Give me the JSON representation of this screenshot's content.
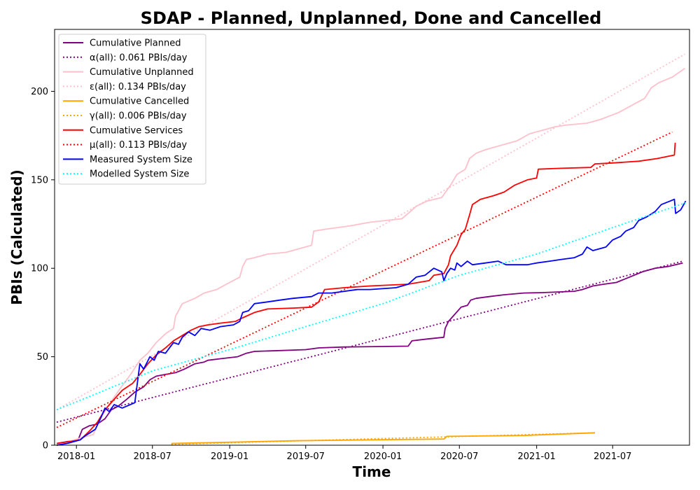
{
  "chart_data": {
    "type": "line",
    "title": "SDAP - Planned, Unplanned, Done  and Cancelled",
    "xlabel": "Time",
    "ylabel": "PBIs (Calculated)",
    "xlim": [
      "2017-11-10",
      "2021-12-31"
    ],
    "ylim": [
      0,
      235
    ],
    "x_ticks": [
      "2018-01",
      "2018-07",
      "2019-01",
      "2019-07",
      "2020-01",
      "2020-07",
      "2021-01",
      "2021-07"
    ],
    "y_ticks": [
      0,
      50,
      100,
      150,
      200
    ],
    "grid": false,
    "legend": "upper left",
    "series": [
      {
        "name": "Cumulative Planned",
        "style": "solid",
        "color": "#800080",
        "points": [
          [
            "2017-11-15",
            1
          ],
          [
            "2017-12-10",
            2
          ],
          [
            "2018-01-05",
            3
          ],
          [
            "2018-01-15",
            9
          ],
          [
            "2018-02-01",
            11
          ],
          [
            "2018-02-20",
            12
          ],
          [
            "2018-03-10",
            15
          ],
          [
            "2018-03-25",
            20
          ],
          [
            "2018-04-10",
            22
          ],
          [
            "2018-05-01",
            26
          ],
          [
            "2018-05-20",
            30
          ],
          [
            "2018-06-10",
            33
          ],
          [
            "2018-06-25",
            37
          ],
          [
            "2018-07-10",
            39
          ],
          [
            "2018-08-01",
            40
          ],
          [
            "2018-08-25",
            41
          ],
          [
            "2018-09-15",
            43
          ],
          [
            "2018-10-10",
            46
          ],
          [
            "2018-11-01",
            47
          ],
          [
            "2018-11-10",
            48
          ],
          [
            "2018-12-15",
            49
          ],
          [
            "2019-01-20",
            50
          ],
          [
            "2019-02-10",
            52
          ],
          [
            "2019-03-01",
            53
          ],
          [
            "2019-05-01",
            53.5
          ],
          [
            "2019-07-01",
            54
          ],
          [
            "2019-08-01",
            55
          ],
          [
            "2019-10-01",
            55.5
          ],
          [
            "2020-01-01",
            55.8
          ],
          [
            "2020-03-01",
            56
          ],
          [
            "2020-03-10",
            59
          ],
          [
            "2020-04-15",
            60
          ],
          [
            "2020-05-25",
            61
          ],
          [
            "2020-05-28",
            66
          ],
          [
            "2020-06-05",
            70
          ],
          [
            "2020-06-20",
            74
          ],
          [
            "2020-07-05",
            78
          ],
          [
            "2020-07-20",
            79
          ],
          [
            "2020-07-28",
            82
          ],
          [
            "2020-08-10",
            83
          ],
          [
            "2020-09-10",
            84
          ],
          [
            "2020-10-15",
            85
          ],
          [
            "2020-12-01",
            86
          ],
          [
            "2021-01-10",
            86.2
          ],
          [
            "2021-02-10",
            86.5
          ],
          [
            "2021-04-01",
            87
          ],
          [
            "2021-04-20",
            88
          ],
          [
            "2021-05-15",
            90
          ],
          [
            "2021-06-10",
            91
          ],
          [
            "2021-07-10",
            92
          ],
          [
            "2021-08-10",
            95
          ],
          [
            "2021-09-10",
            98
          ],
          [
            "2021-10-10",
            100
          ],
          [
            "2021-11-10",
            101
          ],
          [
            "2021-12-15",
            103
          ]
        ]
      },
      {
        "name": "α(all): 0.061 PBIs/day",
        "style": "dotted",
        "color": "#800080",
        "points": [
          [
            "2017-11-15",
            13
          ],
          [
            "2021-12-15",
            104
          ]
        ]
      },
      {
        "name": "Cumulative Unplanned",
        "style": "solid",
        "color": "#FFC0CB",
        "points": [
          [
            "2017-11-15",
            0
          ],
          [
            "2018-01-10",
            4
          ],
          [
            "2018-02-10",
            6
          ],
          [
            "2018-03-01",
            16
          ],
          [
            "2018-03-20",
            23
          ],
          [
            "2018-04-15",
            32
          ],
          [
            "2018-05-10",
            40
          ],
          [
            "2018-06-01",
            48
          ],
          [
            "2018-06-20",
            52
          ],
          [
            "2018-07-10",
            58
          ],
          [
            "2018-08-01",
            63
          ],
          [
            "2018-08-20",
            66
          ],
          [
            "2018-08-25",
            73
          ],
          [
            "2018-09-01",
            76
          ],
          [
            "2018-09-10",
            80
          ],
          [
            "2018-10-10",
            83
          ],
          [
            "2018-11-01",
            86
          ],
          [
            "2018-12-01",
            88
          ],
          [
            "2019-01-01",
            92
          ],
          [
            "2019-01-25",
            95
          ],
          [
            "2019-02-01",
            101
          ],
          [
            "2019-02-10",
            105
          ],
          [
            "2019-03-01",
            106
          ],
          [
            "2019-04-01",
            108
          ],
          [
            "2019-05-15",
            109
          ],
          [
            "2019-06-15",
            111
          ],
          [
            "2019-07-15",
            113
          ],
          [
            "2019-07-20",
            121
          ],
          [
            "2019-08-15",
            122
          ],
          [
            "2019-10-15",
            124
          ],
          [
            "2019-12-01",
            126
          ],
          [
            "2020-02-15",
            128
          ],
          [
            "2020-03-01",
            131
          ],
          [
            "2020-03-20",
            135
          ],
          [
            "2020-04-15",
            138
          ],
          [
            "2020-05-20",
            140
          ],
          [
            "2020-06-10",
            147
          ],
          [
            "2020-06-25",
            153
          ],
          [
            "2020-07-15",
            156
          ],
          [
            "2020-07-25",
            162
          ],
          [
            "2020-08-10",
            165
          ],
          [
            "2020-09-01",
            167
          ],
          [
            "2020-10-01",
            169
          ],
          [
            "2020-11-15",
            172
          ],
          [
            "2020-12-15",
            176
          ],
          [
            "2021-01-15",
            178
          ],
          [
            "2021-02-15",
            180
          ],
          [
            "2021-03-15",
            181
          ],
          [
            "2021-05-01",
            182
          ],
          [
            "2021-06-01",
            184
          ],
          [
            "2021-07-15",
            188
          ],
          [
            "2021-08-15",
            192
          ],
          [
            "2021-09-15",
            196
          ],
          [
            "2021-10-01",
            202
          ],
          [
            "2021-10-20",
            205
          ],
          [
            "2021-11-20",
            208
          ],
          [
            "2021-12-20",
            213
          ]
        ]
      },
      {
        "name": "ε(all): 0.134 PBIs/day",
        "style": "dotted",
        "color": "#FFC0CB",
        "points": [
          [
            "2017-11-15",
            20
          ],
          [
            "2021-12-20",
            221
          ]
        ]
      },
      {
        "name": "Cumulative Cancelled",
        "style": "solid",
        "color": "#FFA500",
        "points": [
          [
            "2018-08-15",
            1
          ],
          [
            "2018-12-01",
            1.5
          ],
          [
            "2019-06-01",
            2.5
          ],
          [
            "2019-12-01",
            3
          ],
          [
            "2020-05-25",
            3.5
          ],
          [
            "2020-06-01",
            5
          ],
          [
            "2020-12-01",
            5.5
          ],
          [
            "2021-05-20",
            7
          ]
        ]
      },
      {
        "name": "γ(all): 0.006 PBIs/day",
        "style": "dotted",
        "color": "#FFA500",
        "points": [
          [
            "2018-08-15",
            0.5
          ],
          [
            "2021-05-20",
            7
          ]
        ]
      },
      {
        "name": "Cumulative Services",
        "style": "solid",
        "color": "#FF0000",
        "points": [
          [
            "2017-11-15",
            1
          ],
          [
            "2017-12-15",
            2
          ],
          [
            "2018-01-10",
            3
          ],
          [
            "2018-02-01",
            8
          ],
          [
            "2018-02-20",
            13
          ],
          [
            "2018-03-10",
            20
          ],
          [
            "2018-04-01",
            26
          ],
          [
            "2018-04-20",
            31
          ],
          [
            "2018-05-15",
            35
          ],
          [
            "2018-06-01",
            40
          ],
          [
            "2018-06-20",
            46
          ],
          [
            "2018-07-10",
            51
          ],
          [
            "2018-08-01",
            55
          ],
          [
            "2018-08-20",
            59
          ],
          [
            "2018-09-10",
            62
          ],
          [
            "2018-10-01",
            65
          ],
          [
            "2018-10-20",
            67
          ],
          [
            "2018-11-10",
            68
          ],
          [
            "2018-12-10",
            69
          ],
          [
            "2019-01-15",
            70
          ],
          [
            "2019-02-01",
            72
          ],
          [
            "2019-03-01",
            75
          ],
          [
            "2019-04-01",
            77
          ],
          [
            "2019-06-01",
            77.5
          ],
          [
            "2019-07-15",
            78
          ],
          [
            "2019-08-01",
            81
          ],
          [
            "2019-08-15",
            88
          ],
          [
            "2019-10-01",
            89
          ],
          [
            "2019-12-01",
            90
          ],
          [
            "2020-03-01",
            91
          ],
          [
            "2020-04-20",
            93
          ],
          [
            "2020-05-01",
            96
          ],
          [
            "2020-05-25",
            97
          ],
          [
            "2020-06-05",
            102
          ],
          [
            "2020-06-10",
            107
          ],
          [
            "2020-06-25",
            113
          ],
          [
            "2020-07-05",
            119
          ],
          [
            "2020-07-15",
            122
          ],
          [
            "2020-07-25",
            130
          ],
          [
            "2020-08-01",
            136
          ],
          [
            "2020-08-20",
            139
          ],
          [
            "2020-09-20",
            141
          ],
          [
            "2020-10-15",
            143
          ],
          [
            "2020-11-10",
            147
          ],
          [
            "2020-12-10",
            150
          ],
          [
            "2021-01-01",
            151
          ],
          [
            "2021-01-05",
            156
          ],
          [
            "2021-03-01",
            156.5
          ],
          [
            "2021-05-10",
            157
          ],
          [
            "2021-05-20",
            159
          ],
          [
            "2021-07-01",
            159.5
          ],
          [
            "2021-09-01",
            160.5
          ],
          [
            "2021-10-15",
            162
          ],
          [
            "2021-11-25",
            164
          ],
          [
            "2021-11-27",
            171
          ]
        ]
      },
      {
        "name": "μ(all): 0.113 PBIs/day",
        "style": "dotted",
        "color": "#FF0000",
        "points": [
          [
            "2017-11-15",
            10
          ],
          [
            "2021-11-20",
            177
          ]
        ]
      },
      {
        "name": "Measured System Size",
        "style": "solid",
        "color": "#0000FF",
        "points": [
          [
            "2017-11-15",
            0
          ],
          [
            "2017-12-10",
            1
          ],
          [
            "2018-01-10",
            3
          ],
          [
            "2018-01-20",
            5
          ],
          [
            "2018-02-15",
            9
          ],
          [
            "2018-03-01",
            16
          ],
          [
            "2018-03-10",
            21
          ],
          [
            "2018-03-20",
            19
          ],
          [
            "2018-04-01",
            23
          ],
          [
            "2018-04-20",
            21
          ],
          [
            "2018-05-20",
            24
          ],
          [
            "2018-06-01",
            46
          ],
          [
            "2018-06-10",
            43
          ],
          [
            "2018-06-25",
            50
          ],
          [
            "2018-07-05",
            48
          ],
          [
            "2018-07-15",
            53
          ],
          [
            "2018-08-01",
            52
          ],
          [
            "2018-08-20",
            58
          ],
          [
            "2018-09-01",
            57
          ],
          [
            "2018-09-10",
            61
          ],
          [
            "2018-09-25",
            64
          ],
          [
            "2018-10-10",
            62
          ],
          [
            "2018-10-25",
            66
          ],
          [
            "2018-11-15",
            65
          ],
          [
            "2018-12-10",
            67
          ],
          [
            "2019-01-10",
            68
          ],
          [
            "2019-01-25",
            70
          ],
          [
            "2019-02-01",
            75
          ],
          [
            "2019-02-15",
            76
          ],
          [
            "2019-03-01",
            80
          ],
          [
            "2019-04-01",
            81
          ],
          [
            "2019-05-01",
            82
          ],
          [
            "2019-06-01",
            83
          ],
          [
            "2019-07-15",
            84
          ],
          [
            "2019-08-01",
            86
          ],
          [
            "2019-09-01",
            86
          ],
          [
            "2019-11-01",
            88
          ],
          [
            "2019-12-01",
            88
          ],
          [
            "2020-02-01",
            89
          ],
          [
            "2020-03-01",
            91
          ],
          [
            "2020-03-20",
            95
          ],
          [
            "2020-04-10",
            96
          ],
          [
            "2020-05-01",
            100
          ],
          [
            "2020-05-20",
            98
          ],
          [
            "2020-05-25",
            93
          ],
          [
            "2020-06-01",
            97
          ],
          [
            "2020-06-10",
            100
          ],
          [
            "2020-06-20",
            99
          ],
          [
            "2020-06-25",
            103
          ],
          [
            "2020-07-05",
            101
          ],
          [
            "2020-07-20",
            104
          ],
          [
            "2020-08-01",
            102
          ],
          [
            "2020-09-01",
            103
          ],
          [
            "2020-10-01",
            104
          ],
          [
            "2020-10-20",
            102
          ],
          [
            "2020-12-10",
            102
          ],
          [
            "2021-01-01",
            103
          ],
          [
            "2021-02-01",
            104
          ],
          [
            "2021-03-01",
            105
          ],
          [
            "2021-04-01",
            106
          ],
          [
            "2021-04-20",
            108
          ],
          [
            "2021-05-01",
            112
          ],
          [
            "2021-05-15",
            110
          ],
          [
            "2021-06-15",
            112
          ],
          [
            "2021-07-01",
            116
          ],
          [
            "2021-07-20",
            118
          ],
          [
            "2021-08-01",
            121
          ],
          [
            "2021-08-20",
            123
          ],
          [
            "2021-09-01",
            127
          ],
          [
            "2021-09-20",
            129
          ],
          [
            "2021-10-10",
            132
          ],
          [
            "2021-10-25",
            136
          ],
          [
            "2021-11-15",
            138
          ],
          [
            "2021-11-25",
            139
          ],
          [
            "2021-11-28",
            131
          ],
          [
            "2021-12-10",
            133
          ],
          [
            "2021-12-22",
            138
          ]
        ]
      },
      {
        "name": "Modelled System Size",
        "style": "dotted",
        "color": "#00FFFF",
        "points": [
          [
            "2017-11-15",
            20
          ],
          [
            "2018-07-01",
            42
          ],
          [
            "2019-01-01",
            54
          ],
          [
            "2019-07-01",
            67
          ],
          [
            "2020-01-01",
            80
          ],
          [
            "2020-07-01",
            96
          ],
          [
            "2021-01-01",
            108
          ],
          [
            "2021-07-01",
            123
          ],
          [
            "2021-12-22",
            137
          ]
        ]
      }
    ]
  }
}
